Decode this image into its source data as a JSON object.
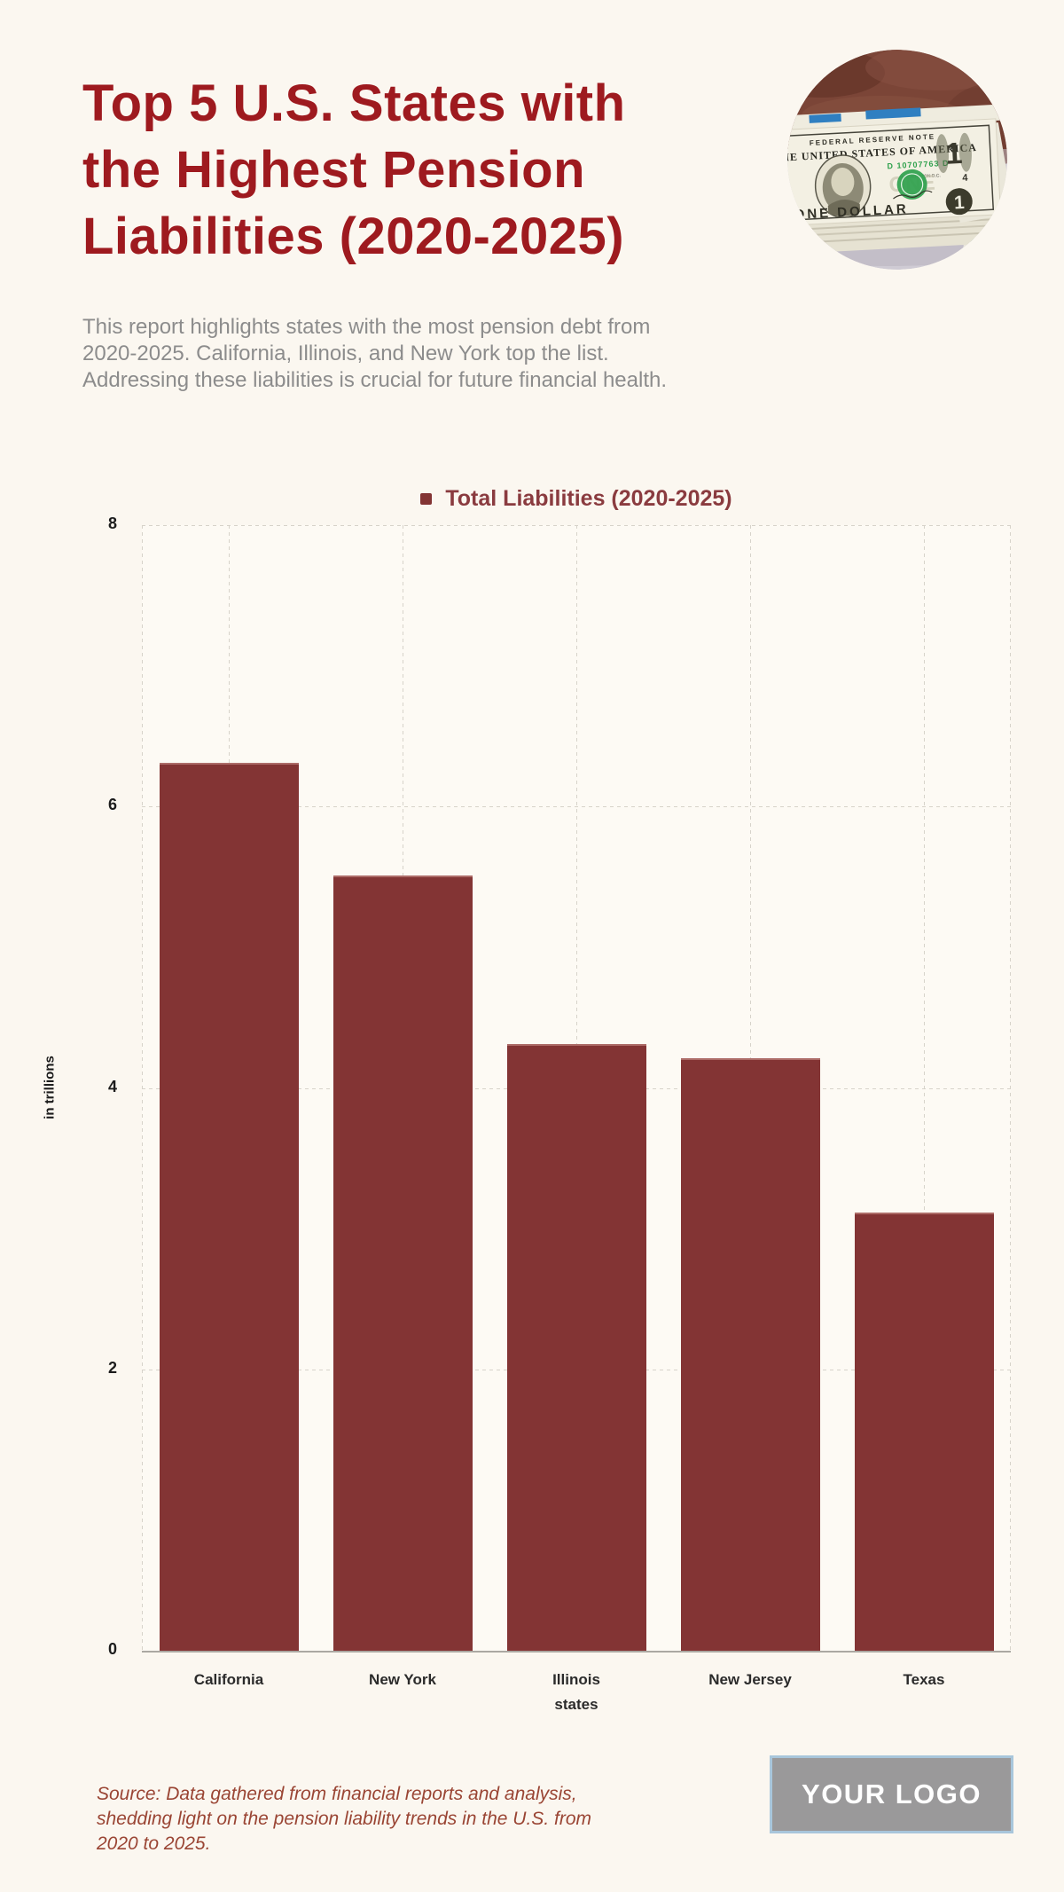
{
  "page": {
    "background": "#FBF7F0"
  },
  "header": {
    "title_lines": [
      "Top 5 U.S. States with",
      "the Highest Pension",
      "Liabilities (2020-2025)"
    ],
    "title_color": "#9E1A1F",
    "intro_lines": [
      "This report highlights states with the most pension debt from",
      "2020-2025. California, Illinois, and New York top the list.",
      "Addressing these liabilities is crucial for future financial health."
    ]
  },
  "photo": {
    "description": "circular photo of a stack of US one-dollar bills on a table",
    "bill_top_text": "FEDERAL RESERVE NOTE",
    "bill_country_text": "THE UNITED STATES OF AMERICA",
    "serial_number": "D 10707763 D",
    "city_text": "WASHINGTON D.C.",
    "plate_number": "4",
    "denomination": "1",
    "bill_bottom_text": "ONE DOLLAR"
  },
  "chart_data": {
    "type": "bar",
    "title": "Total Liabilities (2020-2025)",
    "categories": [
      "California",
      "New York",
      "Illinois",
      "New Jersey",
      "Texas"
    ],
    "values": [
      6.3,
      5.5,
      4.3,
      4.2,
      3.1
    ],
    "xlabel": "states",
    "ylabel": "in trillions",
    "ylim": [
      0,
      8
    ],
    "yticks": [
      0,
      2,
      4,
      6,
      8
    ],
    "grid": "dashed",
    "legend_position": "top-center",
    "bar_color": "#833434",
    "legend_text_color": "#8A3B3F",
    "grid_color": "#D7D3CA",
    "axis_color": "#ABA8A2"
  },
  "footer": {
    "source_lines": [
      "Source: Data gathered from financial reports and analysis,",
      "shedding light on the pension liability trends in the U.S. from",
      "2020 to 2025."
    ],
    "source_color": "#9A4534",
    "logo_label": "YOUR LOGO"
  }
}
